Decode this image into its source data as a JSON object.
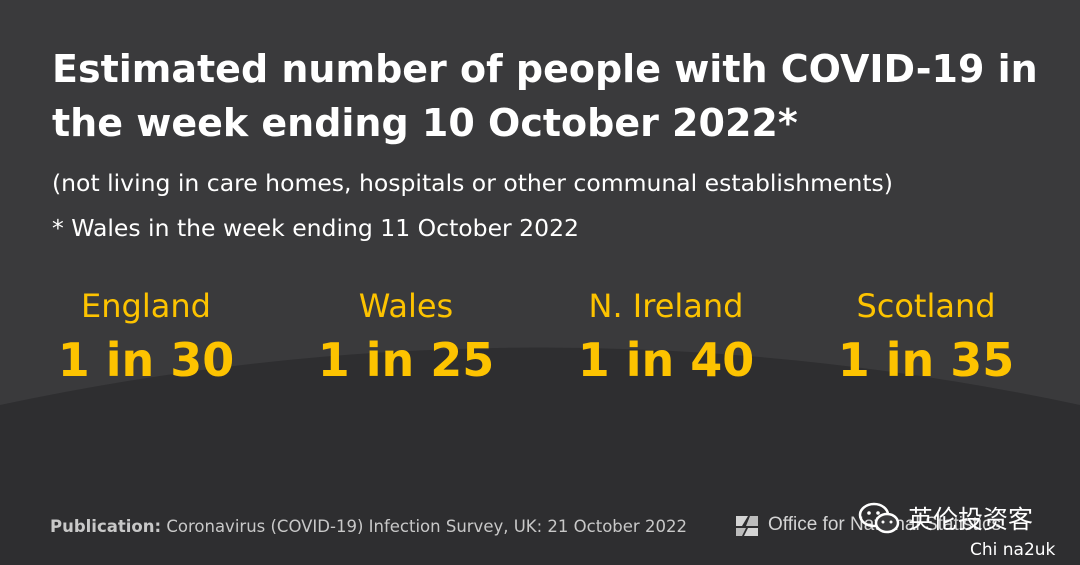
{
  "title": "Estimated number of people with COVID-19 in the week ending 10 October 2022*",
  "subtitle": "(not living in care homes, hospitals or other communal establishments)",
  "footnote": "* Wales in the week ending 11 October 2022",
  "stats": [
    {
      "nation": "England",
      "ratio": "1 in 30"
    },
    {
      "nation": "Wales",
      "ratio": "1 in 25"
    },
    {
      "nation": "N. Ireland",
      "ratio": "1 in 40"
    },
    {
      "nation": "Scotland",
      "ratio": "1 in 35"
    }
  ],
  "footer": {
    "publication_label": "Publication:",
    "publication_text": "Coronavirus (COVID-19) Infection Survey, UK: 21 October 2022",
    "logo_text": "Office for National Statistics"
  },
  "watermark": {
    "cn_text": "英伦投资客",
    "handle": "Chi na2uk"
  },
  "colors": {
    "background": "#3a3a3c",
    "curve": "#2e2e30",
    "accent": "#fdc300"
  }
}
